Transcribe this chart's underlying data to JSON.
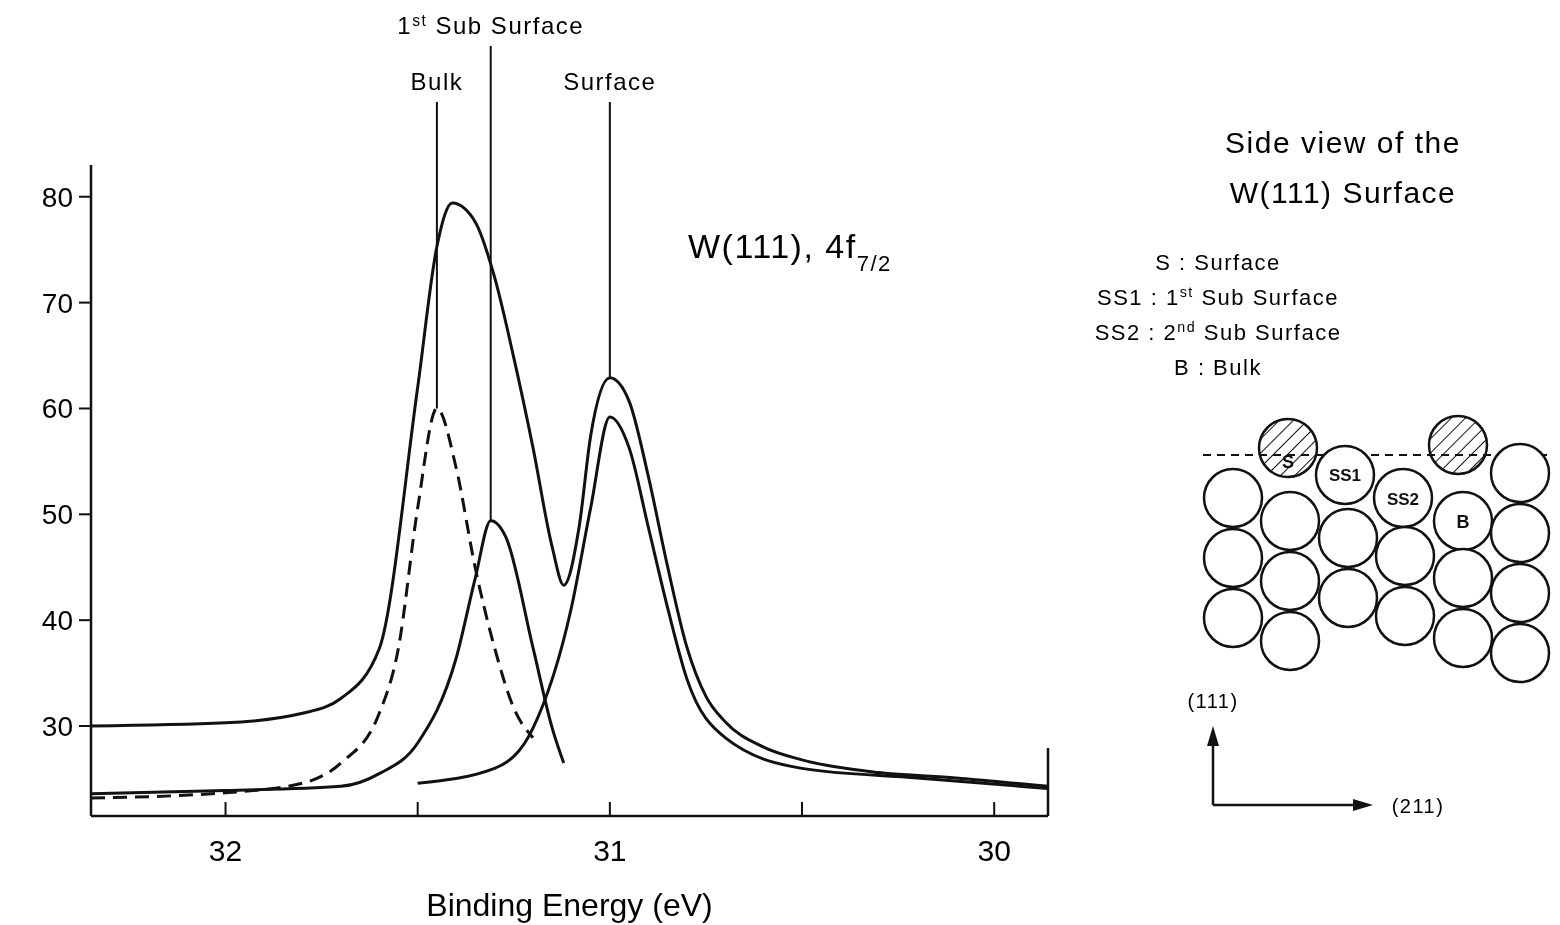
{
  "chart_data": {
    "type": "line",
    "xlabel": "Binding Energy (eV)",
    "xlim": [
      32.35,
      29.86
    ],
    "xticks": [
      32,
      {
        "value": 31.5,
        "label": null
      },
      31,
      {
        "value": 30.5,
        "label": null
      },
      30
    ],
    "ylim": [
      21.5,
      83
    ],
    "yticks": [
      80,
      70,
      60,
      50,
      40,
      30
    ],
    "grid": false,
    "series": [
      {
        "color": "#111111",
        "line_style": "solid",
        "x": [
          32.35,
          32.0,
          31.8,
          31.7,
          31.6,
          31.5,
          31.45,
          31.41,
          31.35,
          31.3,
          31.25,
          31.2,
          31.15,
          31.12,
          31.08,
          31.05,
          31.0,
          30.95,
          30.9,
          30.85,
          30.8,
          30.75,
          30.7,
          30.6,
          30.5,
          30.3,
          30.1,
          29.86
        ],
        "values": [
          30.0,
          30.3,
          31.2,
          32.6,
          37.3,
          62,
          75.3,
          79.4,
          77.6,
          72.4,
          64.8,
          56.3,
          46.9,
          43.3,
          48.8,
          57.4,
          62.9,
          60.7,
          53.6,
          45.1,
          37.5,
          32.8,
          30.4,
          28,
          26.8,
          25.6,
          25.1,
          24.3
        ]
      },
      {
        "color": "#111111",
        "line_style": "dashed",
        "x": [
          32.35,
          32.0,
          31.8,
          31.7,
          31.6,
          31.55,
          31.5,
          31.45,
          31.4,
          31.35,
          31.3,
          31.25,
          31.2
        ],
        "values": [
          23.2,
          23.7,
          24.6,
          26.5,
          31.2,
          37.4,
          50.6,
          60.0,
          54.4,
          44.9,
          37.4,
          31.7,
          28.9
        ]
      },
      {
        "color": "#111111",
        "line_style": "solid",
        "x": [
          32.35,
          32.0,
          31.7,
          31.6,
          31.5,
          31.4,
          31.35,
          31.31,
          31.27,
          31.2,
          31.15,
          31.12
        ],
        "values": [
          23.6,
          23.9,
          24.3,
          25.5,
          28.4,
          36.4,
          44.0,
          49.4,
          47.8,
          37.4,
          29.8,
          26.5
        ]
      },
      {
        "color": "#111111",
        "line_style": "solid",
        "x": [
          31.5,
          31.3,
          31.2,
          31.1,
          31.05,
          31.0,
          30.95,
          30.9,
          30.85,
          30.8,
          30.7,
          30.5,
          30.2,
          29.86
        ],
        "values": [
          24.6,
          26.0,
          29.8,
          41.2,
          50.6,
          59.2,
          56.3,
          48.8,
          41.2,
          34.5,
          28.9,
          26.0,
          25.1,
          24.1
        ]
      }
    ],
    "annotations": [
      {
        "text": "Bulk",
        "x": 31.45,
        "y": 60.0
      },
      {
        "text": "1$^{st}$ Sub Surface",
        "x": 31.31,
        "y": 49.4
      },
      {
        "text": "Surface",
        "x": 31.0,
        "y": 62.9
      },
      "W(111), 4f$_{7/2}$",
      "Side view of the",
      "W(111) Surface",
      "S : Surface",
      "SS1 : 1$^{st}$ Sub Surface",
      "SS2 : 2$^{nd}$ Sub Surface",
      "B : Bulk",
      "S",
      "SS1",
      "SS2",
      "B",
      "(111)",
      "(211)"
    ]
  }
}
